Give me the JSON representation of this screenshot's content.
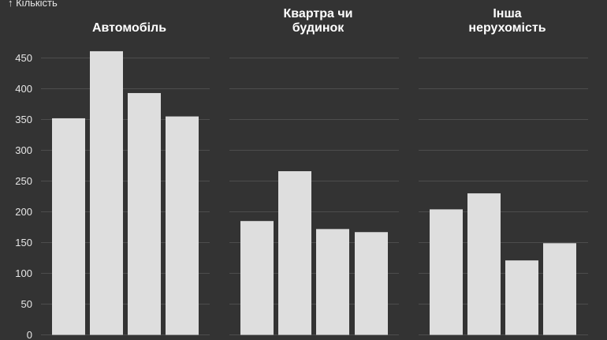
{
  "chart_data": {
    "type": "bar",
    "ylabel": "↑ Кількість",
    "ylim": [
      0,
      450
    ],
    "yticks": [
      0,
      50,
      100,
      150,
      200,
      250,
      300,
      350,
      400,
      450
    ],
    "grid": true,
    "colors": {
      "background": "#333333",
      "bar": "#dedede",
      "grid": "#4d4d4d",
      "text": "#e6e6e6"
    },
    "panels": [
      {
        "title": [
          "Автомобіль"
        ],
        "values": [
          352,
          461,
          393,
          355
        ]
      },
      {
        "title": [
          "Квартра чи",
          "будинок"
        ],
        "values": [
          185,
          266,
          172,
          167
        ]
      },
      {
        "title": [
          "Інша",
          "нерухомість"
        ],
        "values": [
          204,
          230,
          121,
          149
        ]
      }
    ]
  }
}
